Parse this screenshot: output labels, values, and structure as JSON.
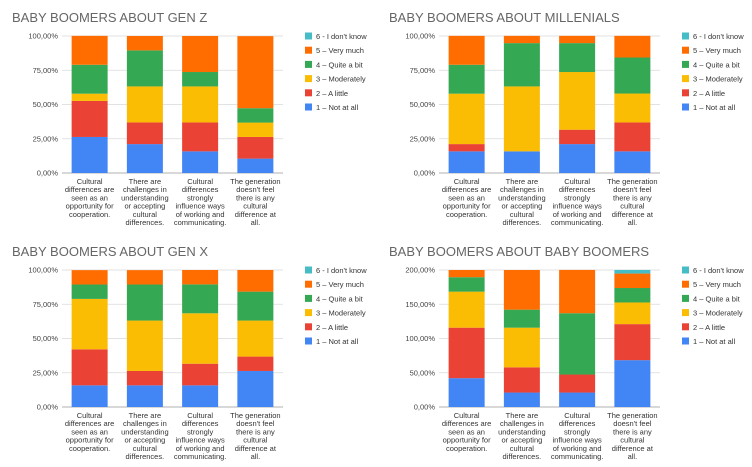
{
  "colors": {
    "1 – Not at all": "#4285f4",
    "2 – A little": "#ea4335",
    "3 – Moderately": "#fbbc04",
    "4 – Quite a bit": "#34a853",
    "5 – Very much": "#ff6d01",
    "6 - I don't know": "#46bdc6"
  },
  "chart_data": [
    {
      "type": "bar",
      "stacked": true,
      "title": "BABY BOOMERS ABOUT GEN Z",
      "ylim": [
        0,
        100
      ],
      "y_ticks": [
        "0,00%",
        "25,00%",
        "50,00%",
        "75,00%",
        "100,00%"
      ],
      "legend_position": "right",
      "legend": [
        "6 - I don't know",
        "5 – Very much",
        "4 – Quite a bit",
        "3 – Moderately",
        "2 – A little",
        "1 – Not at all"
      ],
      "categories": [
        "Cultural differences are seen as an opportunity for cooperation.",
        "There are challenges in understanding or accepting cultural differences.",
        "Cultural differences strongly influence ways of working and communicating.",
        "The generation doesn't feel there is any cultural difference at all."
      ],
      "series": [
        {
          "name": "1 – Not at all",
          "values": [
            26.3,
            21.1,
            15.8,
            10.5
          ]
        },
        {
          "name": "2 – A little",
          "values": [
            26.3,
            15.8,
            21.1,
            15.8
          ]
        },
        {
          "name": "3 – Moderately",
          "values": [
            5.3,
            26.3,
            26.3,
            10.5
          ]
        },
        {
          "name": "4 – Quite a bit",
          "values": [
            21.1,
            26.3,
            10.5,
            10.5
          ]
        },
        {
          "name": "5 – Very much",
          "values": [
            21.1,
            10.5,
            26.3,
            52.6
          ]
        },
        {
          "name": "6 - I don't know",
          "values": [
            0,
            0,
            0,
            0
          ]
        }
      ]
    },
    {
      "type": "bar",
      "stacked": true,
      "title": "BABY BOOMERS ABOUT MILLENIALS",
      "ylim": [
        0,
        100
      ],
      "y_ticks": [
        "0,00%",
        "25,00%",
        "50,00%",
        "75,00%",
        "100,00%"
      ],
      "legend_position": "right",
      "legend": [
        "6 - I don't know",
        "5 – Very much",
        "4 – Quite a bit",
        "3 – Moderately",
        "2 – A little",
        "1 – Not at all"
      ],
      "categories": [
        "Cultural differences are seen as an opportunity for cooperation.",
        "There are challenges in understanding or accepting cultural differences.",
        "Cultural differences strongly influence ways of working and communicating.",
        "The generation doesn't feel there is any cultural difference at all."
      ],
      "series": [
        {
          "name": "1 – Not at all",
          "values": [
            15.8,
            15.8,
            21.1,
            15.8
          ]
        },
        {
          "name": "2 – A little",
          "values": [
            5.3,
            0,
            10.5,
            21.1
          ]
        },
        {
          "name": "3 – Moderately",
          "values": [
            36.8,
            47.4,
            42.1,
            21.1
          ]
        },
        {
          "name": "4 – Quite a bit",
          "values": [
            21.1,
            31.6,
            21.1,
            26.3
          ]
        },
        {
          "name": "5 – Very much",
          "values": [
            21.1,
            5.3,
            5.3,
            15.8
          ]
        },
        {
          "name": "6 - I don't know",
          "values": [
            0,
            0,
            0,
            0
          ]
        }
      ]
    },
    {
      "type": "bar",
      "stacked": true,
      "title": "BABY BOOMERS ABOUT GEN X",
      "ylim": [
        0,
        100
      ],
      "y_ticks": [
        "0,00%",
        "25,00%",
        "50,00%",
        "75,00%",
        "100,00%"
      ],
      "legend_position": "right",
      "legend": [
        "6 - I don't know",
        "5 – Very much",
        "4 – Quite a bit",
        "3 – Moderately",
        "2 – A little",
        "1 – Not at all"
      ],
      "categories": [
        "Cultural differences are seen as an opportunity for cooperation.",
        "There are challenges in understanding or accepting cultural differences.",
        "Cultural differences strongly influence ways of working and communicating.",
        "The generation doesn't feel there is any cultural difference at all."
      ],
      "series": [
        {
          "name": "1 – Not at all",
          "values": [
            15.8,
            15.8,
            15.8,
            26.3
          ]
        },
        {
          "name": "2 – A little",
          "values": [
            26.3,
            10.5,
            15.8,
            10.5
          ]
        },
        {
          "name": "3 – Moderately",
          "values": [
            36.8,
            36.8,
            36.8,
            26.3
          ]
        },
        {
          "name": "4 – Quite a bit",
          "values": [
            10.5,
            26.3,
            21.1,
            21.1
          ]
        },
        {
          "name": "5 – Very much",
          "values": [
            10.5,
            10.5,
            10.5,
            15.8
          ]
        },
        {
          "name": "6 - I don't know",
          "values": [
            0,
            0,
            0,
            0
          ]
        }
      ]
    },
    {
      "type": "bar",
      "stacked": true,
      "title": "BABY BOOMERS ABOUT BABY BOOMERS",
      "ylim": [
        0,
        200
      ],
      "y_ticks": [
        "0,00%",
        "50,00%",
        "100,00%",
        "150,00%",
        "200,00%"
      ],
      "legend_position": "right",
      "legend": [
        "6 - I don't know",
        "5 – Very much",
        "4 – Quite a bit",
        "3 – Moderately",
        "2 – A little",
        "1 – Not at all"
      ],
      "categories": [
        "Cultural differences are seen as an opportunity for cooperation.",
        "There are challenges in understanding or accepting cultural differences.",
        "Cultural differences strongly influence ways of working and communicating.",
        "The generation doesn't feel there is any cultural difference at all."
      ],
      "series": [
        {
          "name": "1 – Not at all",
          "values": [
            42.1,
            21.1,
            21.1,
            68.4
          ]
        },
        {
          "name": "2 – A little",
          "values": [
            73.7,
            36.8,
            26.3,
            52.6
          ]
        },
        {
          "name": "3 – Moderately",
          "values": [
            52.6,
            57.9,
            0,
            31.6
          ]
        },
        {
          "name": "4 – Quite a bit",
          "values": [
            21.1,
            26.3,
            89.5,
            21.1
          ]
        },
        {
          "name": "5 – Very much",
          "values": [
            10.5,
            57.9,
            63.2,
            21.1
          ]
        },
        {
          "name": "6 - I don't know",
          "values": [
            0,
            0,
            0,
            5.3
          ]
        }
      ]
    }
  ]
}
